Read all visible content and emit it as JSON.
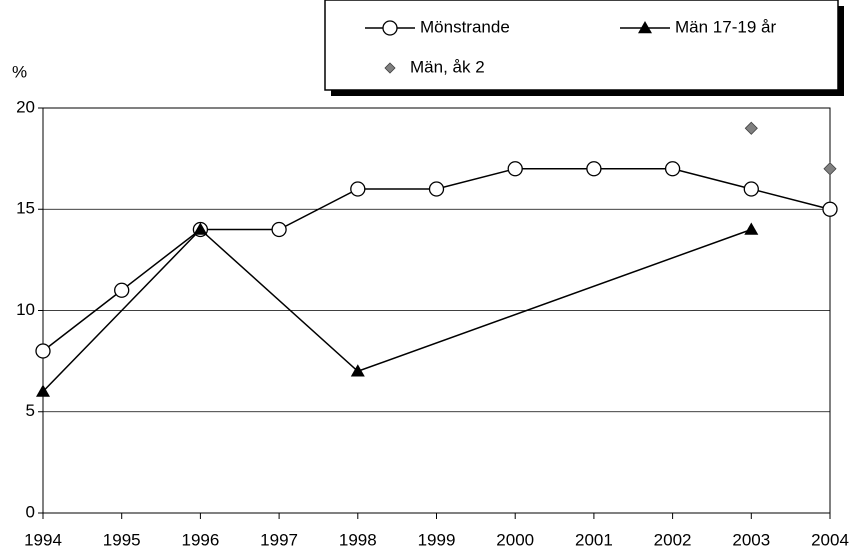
{
  "chart_data": {
    "type": "line",
    "y_label": "%",
    "xlim": [
      1994,
      2004
    ],
    "xticks": [
      1994,
      1995,
      1996,
      1997,
      1998,
      1999,
      2000,
      2001,
      2002,
      2003,
      2004
    ],
    "ylim": [
      0,
      20
    ],
    "yticks": [
      0,
      5,
      10,
      15,
      20
    ],
    "grid": true,
    "series": [
      {
        "name": "Mönstrande",
        "color": "#000000",
        "marker": "circle",
        "line": true,
        "x": [
          1994,
          1995,
          1996,
          1997,
          1998,
          1999,
          2000,
          2001,
          2002,
          2003,
          2004
        ],
        "values": [
          8,
          11,
          14,
          14,
          16,
          16,
          17,
          17,
          17,
          16,
          15
        ]
      },
      {
        "name": "Män 17-19 år",
        "color": "#000000",
        "marker": "triangle",
        "line": true,
        "x": [
          1994,
          1996,
          1998,
          2003
        ],
        "values": [
          6,
          14,
          7,
          14
        ]
      },
      {
        "name": "Män, åk 2",
        "color": "#808080",
        "marker": "diamond",
        "line": false,
        "x": [
          2003,
          2004
        ],
        "values": [
          19,
          17
        ]
      }
    ]
  }
}
